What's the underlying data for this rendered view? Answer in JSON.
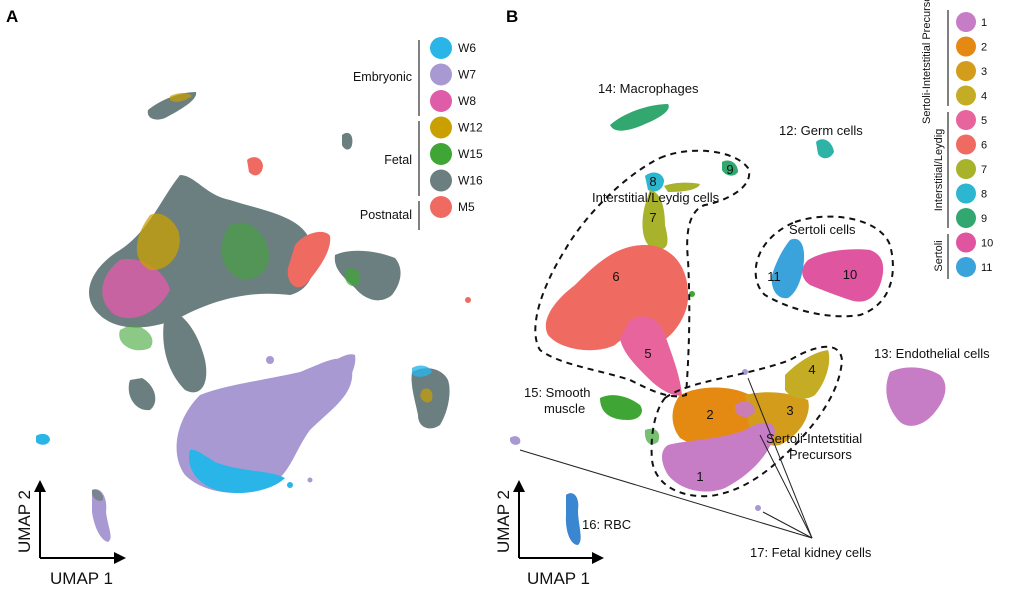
{
  "panels": {
    "a": {
      "letter": "A",
      "axis_y": "UMAP 2",
      "axis_x": "UMAP 1"
    },
    "b": {
      "letter": "B",
      "axis_y": "UMAP 2",
      "axis_x": "UMAP 1"
    }
  },
  "legend_a": {
    "groups": [
      {
        "name": "Embryonic",
        "items": [
          {
            "label": "W6",
            "color": "#29b5e8"
          },
          {
            "label": "W7",
            "color": "#a999d3"
          },
          {
            "label": "W8",
            "color": "#de5ca8"
          }
        ]
      },
      {
        "name": "Fetal",
        "items": [
          {
            "label": "W12",
            "color": "#c9a000"
          },
          {
            "label": "W15",
            "color": "#3fa535"
          },
          {
            "label": "W16",
            "color": "#6b7f80"
          }
        ]
      },
      {
        "name": "Postnatal",
        "items": [
          {
            "label": "M5",
            "color": "#ef6b62"
          }
        ]
      }
    ]
  },
  "legend_b": {
    "groups": [
      {
        "name": "Sertoli-Intetstitial Precursor",
        "items": [
          {
            "label": "1",
            "color": "#c77cc6"
          },
          {
            "label": "2",
            "color": "#e48a12"
          },
          {
            "label": "3",
            "color": "#d39c1a"
          },
          {
            "label": "4",
            "color": "#c4ad25"
          }
        ]
      },
      {
        "name": "Interstitial/Leydig",
        "items": [
          {
            "label": "5",
            "color": "#e8649c"
          },
          {
            "label": "6",
            "color": "#ef6b62"
          },
          {
            "label": "7",
            "color": "#a8b22a"
          },
          {
            "label": "8",
            "color": "#2cb6d0"
          },
          {
            "label": "9",
            "color": "#32a870"
          }
        ]
      },
      {
        "name": "Sertoli",
        "items": [
          {
            "label": "10",
            "color": "#e0559f"
          },
          {
            "label": "11",
            "color": "#3aa3dc"
          }
        ]
      }
    ]
  },
  "annotations_b": {
    "macrophages": "14: Macrophages",
    "germ": "12: Germ cells",
    "interstitial": "Interstitial/Leydig cells",
    "sertoli": "Sertoli cells",
    "endothelial": "13: Endothelial cells",
    "smooth1": "15: Smooth",
    "smooth2": "muscle",
    "precursors1": "Sertoli-Intetstitial",
    "precursors2": "Precursors",
    "rbc": "16: RBC",
    "kidney": "17: Fetal kidney cells"
  },
  "cluster_numbers": [
    "1",
    "2",
    "3",
    "4",
    "5",
    "6",
    "7",
    "8",
    "9",
    "10",
    "11"
  ]
}
